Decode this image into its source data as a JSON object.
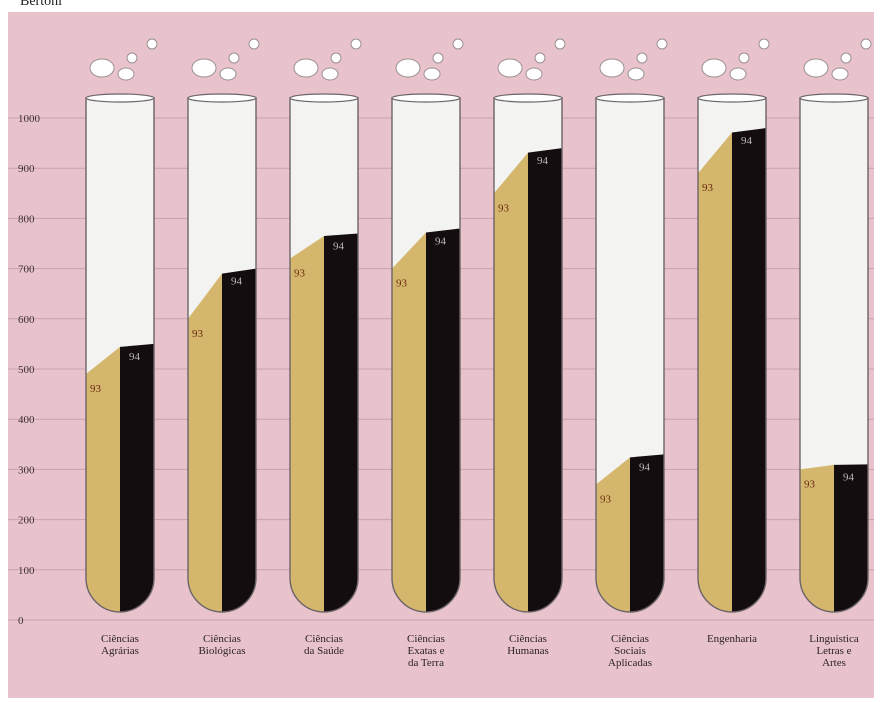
{
  "page": {
    "credit": "Bertoni"
  },
  "chart_data": {
    "type": "bar",
    "style": "test-tube pictogram",
    "title": "",
    "xlabel": "",
    "ylabel": "",
    "ylim": [
      0,
      1000
    ],
    "yticks": [
      0,
      100,
      200,
      300,
      400,
      500,
      600,
      700,
      800,
      900,
      1000
    ],
    "categories": [
      "Ciências\nAgrárias",
      "Ciências\nBiológicas",
      "Ciências\nda Saúde",
      "Ciências\nExatas e\nda Terra",
      "Ciências\nHumanas",
      "Ciências\nSociais\nAplicadas",
      "Engenharia",
      "Linguística\nLetras e\nArtes"
    ],
    "series": [
      {
        "name": "93",
        "color": "#d4b76c",
        "values": [
          490,
          600,
          720,
          700,
          850,
          270,
          890,
          300
        ]
      },
      {
        "name": "94",
        "color": "#130d0f",
        "values": [
          550,
          700,
          770,
          780,
          940,
          330,
          980,
          310
        ]
      }
    ],
    "grid": true,
    "legend": "series labels inside tubes"
  }
}
